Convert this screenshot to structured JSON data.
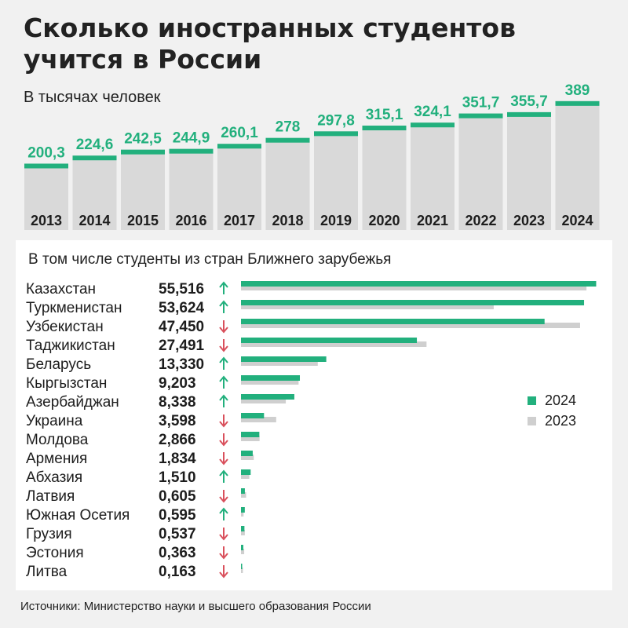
{
  "header": {
    "title_line1": "Сколько иностранных студентов",
    "title_line2": "учится в России",
    "subtitle": "В тысячах человек"
  },
  "bottom_panel_title": "В том числе студенты из стран Ближнего зарубежья",
  "source": "Источники: Министерство науки и высшего образования России",
  "colors": {
    "accent": "#22b07d",
    "gray_bar": "#d9d9d9",
    "bar_2023": "#cfcfcf",
    "up_arrow": "#22b07d",
    "down_arrow": "#d9505c",
    "background": "#f1f1f1"
  },
  "chart_data": [
    {
      "type": "bar",
      "title": "Сколько иностранных студентов учится в России",
      "subtitle": "В тысячах человек",
      "categories": [
        "2013",
        "2014",
        "2015",
        "2016",
        "2017",
        "2018",
        "2019",
        "2020",
        "2021",
        "2022",
        "2023",
        "2024"
      ],
      "values": [
        200.3,
        224.6,
        242.5,
        244.9,
        260.1,
        278,
        297.8,
        315.1,
        324.1,
        351.7,
        355.7,
        389
      ],
      "value_labels": [
        "200,3",
        "224,6",
        "242,5",
        "244,9",
        "260,1",
        "278",
        "297,8",
        "315,1",
        "324,1",
        "351,7",
        "355,7",
        "389"
      ]
    },
    {
      "type": "bar",
      "orientation": "horizontal",
      "title": "В том числе студенты из стран Ближнего зарубежья",
      "legend_position": "right",
      "categories": [
        "Казахстан",
        "Туркменистан",
        "Узбекистан",
        "Таджикистан",
        "Беларусь",
        "Кыргызстан",
        "Азербайджан",
        "Украина",
        "Молдова",
        "Армения",
        "Абхазия",
        "Латвия",
        "Южная Осетия",
        "Грузия",
        "Эстония",
        "Литва"
      ],
      "value_labels": [
        "55,516",
        "53,624",
        "47,450",
        "27,491",
        "13,330",
        "9,203",
        "8,338",
        "3,598",
        "2,866",
        "1,834",
        "1,510",
        "0,605",
        "0,595",
        "0,537",
        "0,363",
        "0,163"
      ],
      "trend": [
        "up",
        "up",
        "down",
        "down",
        "up",
        "up",
        "up",
        "down",
        "down",
        "down",
        "up",
        "down",
        "up",
        "down",
        "down",
        "down"
      ],
      "series": [
        {
          "name": "2024",
          "values": [
            55.516,
            53.624,
            47.45,
            27.491,
            13.33,
            9.203,
            8.338,
            3.598,
            2.866,
            1.834,
            1.51,
            0.605,
            0.595,
            0.537,
            0.363,
            0.163
          ]
        },
        {
          "name": "2023",
          "values": [
            54.0,
            39.5,
            53.0,
            29.0,
            12.0,
            9.0,
            7.0,
            5.5,
            2.9,
            2.0,
            1.3,
            0.8,
            0.4,
            0.6,
            0.5,
            0.3
          ]
        }
      ]
    }
  ]
}
